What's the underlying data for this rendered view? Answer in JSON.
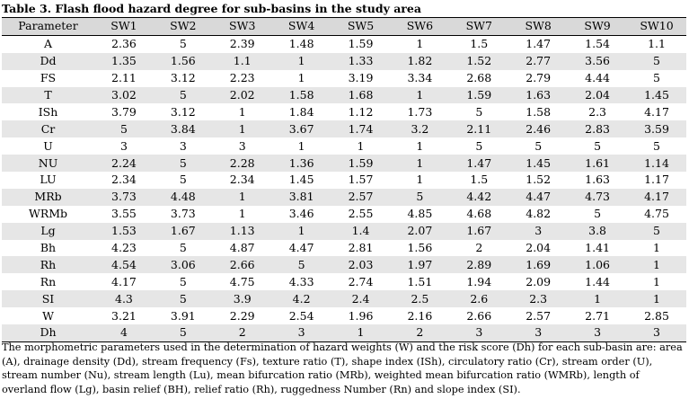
{
  "caption": "Table 3. Flash flood hazard degree for sub-basins in the study area",
  "header": [
    "Parameter",
    "SW1",
    "SW2",
    "SW3",
    "SW4",
    "SW5",
    "SW6",
    "SW7",
    "SW8",
    "SW9",
    "SW10"
  ],
  "rows": [
    [
      "A",
      "2.36",
      "5",
      "2.39",
      "1.48",
      "1.59",
      "1",
      "1.5",
      "1.47",
      "1.54",
      "1.1"
    ],
    [
      "Dd",
      "1.35",
      "1.56",
      "1.1",
      "1",
      "1.33",
      "1.82",
      "1.52",
      "2.77",
      "3.56",
      "5"
    ],
    [
      "FS",
      "2.11",
      "3.12",
      "2.23",
      "1",
      "3.19",
      "3.34",
      "2.68",
      "2.79",
      "4.44",
      "5"
    ],
    [
      "T",
      "3.02",
      "5",
      "2.02",
      "1.58",
      "1.68",
      "1",
      "1.59",
      "1.63",
      "2.04",
      "1.45"
    ],
    [
      "ISh",
      "3.79",
      "3.12",
      "1",
      "1.84",
      "1.12",
      "1.73",
      "5",
      "1.58",
      "2.3",
      "4.17"
    ],
    [
      "Cr",
      "5",
      "3.84",
      "1",
      "3.67",
      "1.74",
      "3.2",
      "2.11",
      "2.46",
      "2.83",
      "3.59"
    ],
    [
      "U",
      "3",
      "3",
      "3",
      "1",
      "1",
      "1",
      "5",
      "5",
      "5",
      "5"
    ],
    [
      "NU",
      "2.24",
      "5",
      "2.28",
      "1.36",
      "1.59",
      "1",
      "1.47",
      "1.45",
      "1.61",
      "1.14"
    ],
    [
      "LU",
      "2.34",
      "5",
      "2.34",
      "1.45",
      "1.57",
      "1",
      "1.5",
      "1.52",
      "1.63",
      "1.17"
    ],
    [
      "MRb",
      "3.73",
      "4.48",
      "1",
      "3.81",
      "2.57",
      "5",
      "4.42",
      "4.47",
      "4.73",
      "4.17"
    ],
    [
      "WRMb",
      "3.55",
      "3.73",
      "1",
      "3.46",
      "2.55",
      "4.85",
      "4.68",
      "4.82",
      "5",
      "4.75"
    ],
    [
      "Lg",
      "1.53",
      "1.67",
      "1.13",
      "1",
      "1.4",
      "2.07",
      "1.67",
      "3",
      "3.8",
      "5"
    ],
    [
      "Bh",
      "4.23",
      "5",
      "4.87",
      "4.47",
      "2.81",
      "1.56",
      "2",
      "2.04",
      "1.41",
      "1"
    ],
    [
      "Rh",
      "4.54",
      "3.06",
      "2.66",
      "5",
      "2.03",
      "1.97",
      "2.89",
      "1.69",
      "1.06",
      "1"
    ],
    [
      "Rn",
      "4.17",
      "5",
      "4.75",
      "4.33",
      "2.74",
      "1.51",
      "1.94",
      "2.09",
      "1.44",
      "1"
    ],
    [
      "SI",
      "4.3",
      "5",
      "3.9",
      "4.2",
      "2.4",
      "2.5",
      "2.6",
      "2.3",
      "1",
      "1"
    ],
    [
      "W",
      "3.21",
      "3.91",
      "2.29",
      "2.54",
      "1.96",
      "2.16",
      "2.66",
      "2.57",
      "2.71",
      "2.85"
    ],
    [
      "Dh",
      "4",
      "5",
      "2",
      "3",
      "1",
      "2",
      "3",
      "3",
      "3",
      "3"
    ]
  ],
  "footnote": "The morphometric parameters used in the determination of hazard weights (W) and the risk score (Dh) for each sub-basin are: area (A), drainage density (Dd), stream frequency (Fs), texture ratio (T), shape index (ISh), circulatory ratio (Cr), stream order (U), stream number (Nu), stream length (Lu), mean bifurcation ratio (MRb), weighted mean bifurcation ratio (WMRb), length of overland flow (Lg), basin relief (BH), relief ratio (Rh), ruggedness Number (Rn) and slope index (SI).",
  "colors": {
    "header_bg": "#d9d9d9",
    "band_bg": "#e6e6e6",
    "text": "#000000"
  }
}
